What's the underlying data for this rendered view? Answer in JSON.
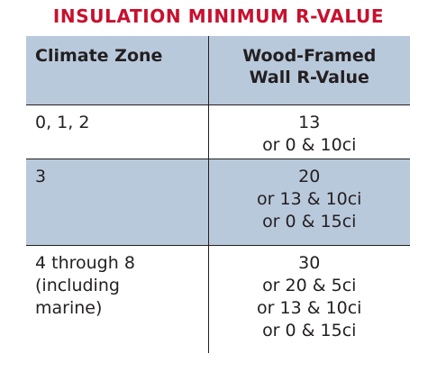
{
  "title": "INSULATION MINIMUM R-VALUE",
  "table": {
    "headers": {
      "zone": "Climate Zone",
      "wall_line1": "Wood-Framed",
      "wall_line2": "Wall R-Value"
    },
    "rows": [
      {
        "zone": [
          "0, 1, 2"
        ],
        "values": [
          "13",
          "or 0 & 10ci"
        ]
      },
      {
        "zone": [
          "3"
        ],
        "values": [
          "20",
          "or 13 & 10ci",
          "or 0 & 15ci"
        ]
      },
      {
        "zone": [
          "4 through 8",
          "(including",
          "marine)"
        ],
        "values": [
          "30",
          "or 20 & 5ci",
          "or 13 & 10ci",
          "or 0 & 15ci"
        ]
      }
    ]
  },
  "colors": {
    "title": "#c8102e",
    "header_bg": "#b9c9dc",
    "text": "#231f20"
  }
}
